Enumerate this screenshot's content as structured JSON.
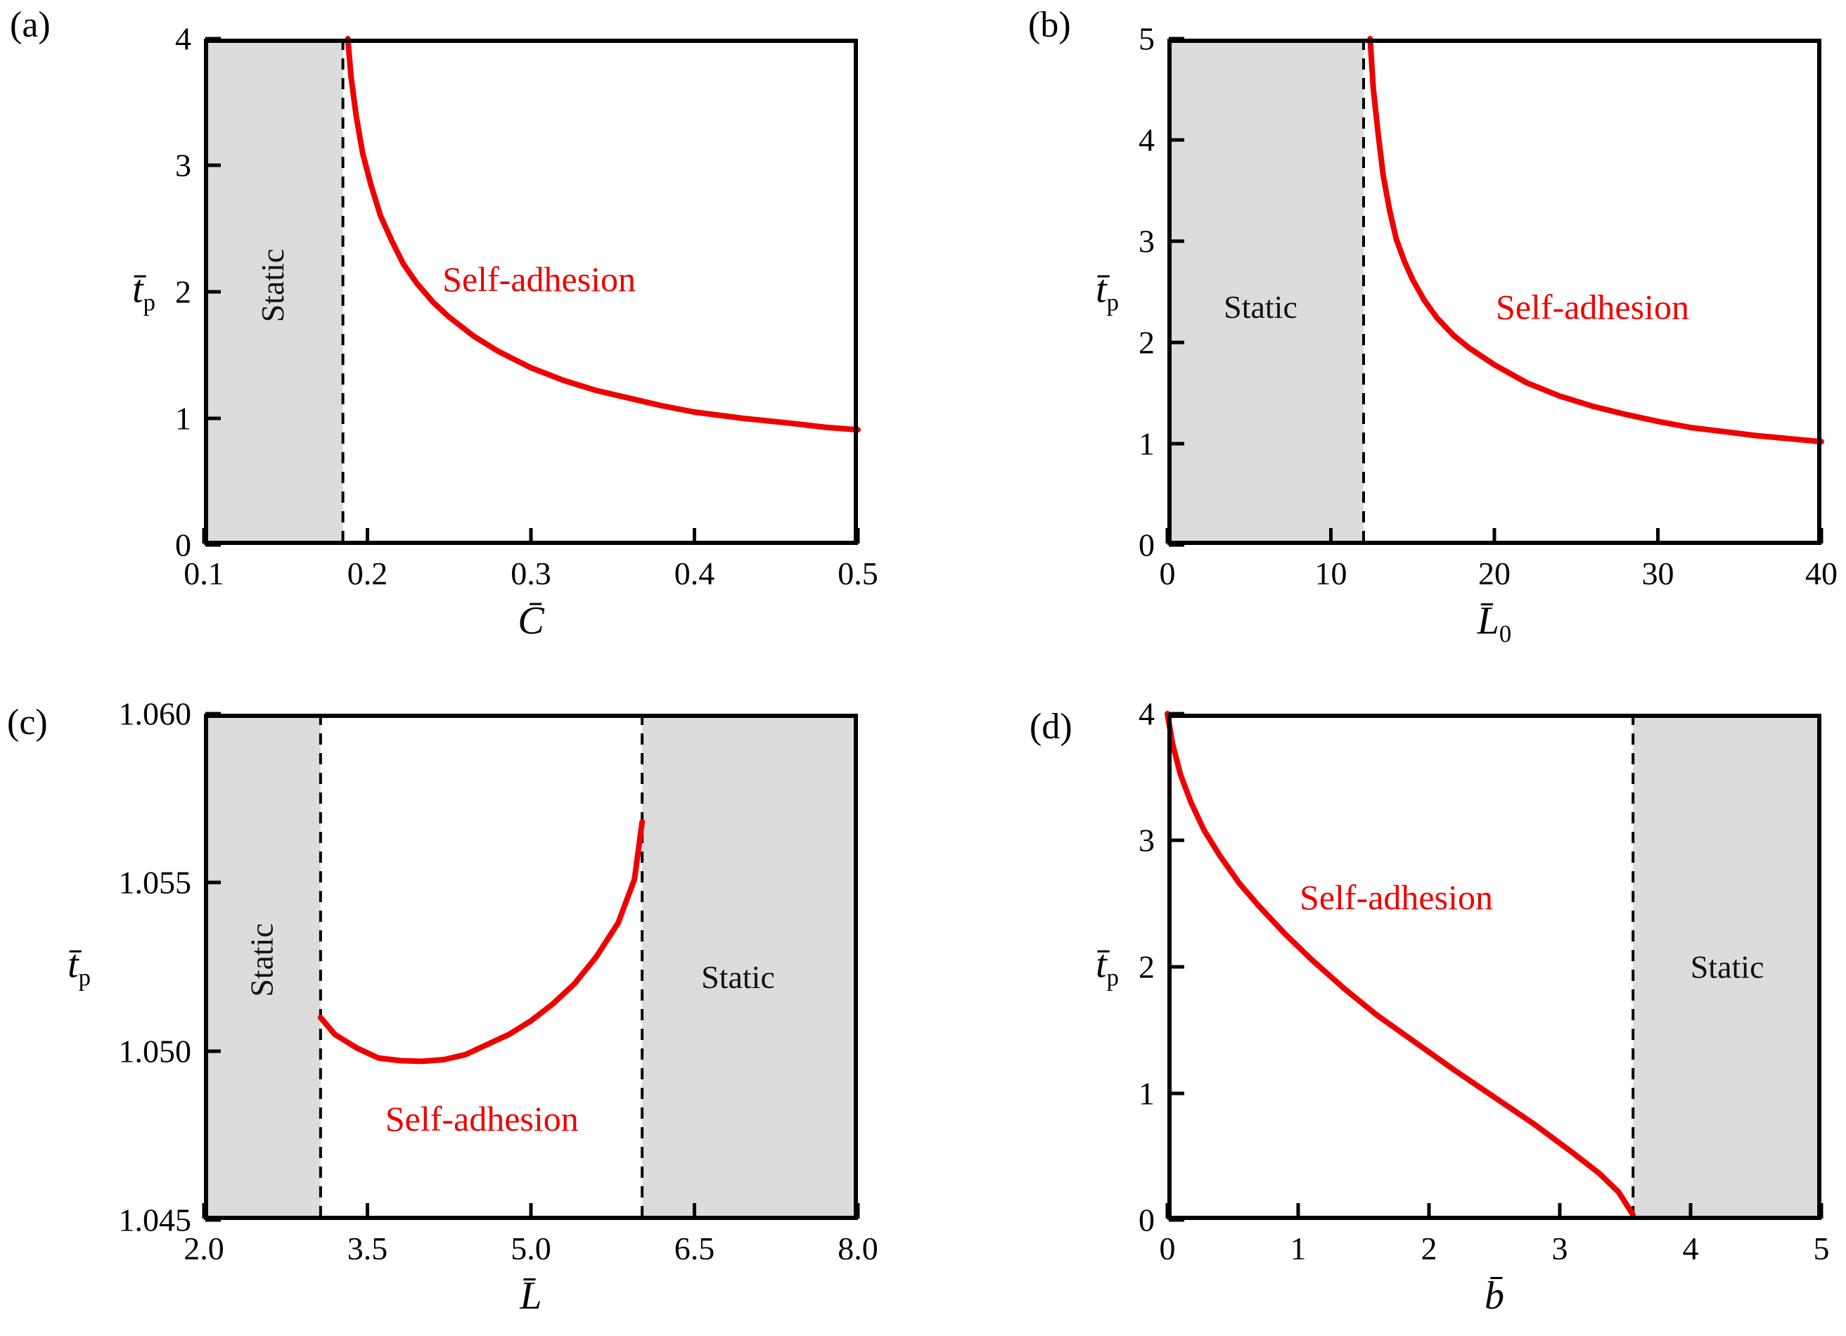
{
  "style": {
    "curve_red": "#ee0000",
    "static_region_fill": "#dcdcdc",
    "dashed_line_color": "#000000",
    "frame_color": "#000000",
    "background": "#ffffff"
  },
  "chart_data": [
    {
      "panel": "a",
      "panel_label": "(a)",
      "type": "line",
      "xlabel": {
        "base": "C̄",
        "sub": ""
      },
      "ylabel": {
        "base": "t̄",
        "sub": "p"
      },
      "xlim": [
        0.1,
        0.5
      ],
      "ylim": [
        0,
        4
      ],
      "xticks": [
        0.1,
        0.2,
        0.3,
        0.4,
        0.5
      ],
      "xtick_labels": [
        "0.1",
        "0.2",
        "0.3",
        "0.4",
        "0.5"
      ],
      "yticks": [
        0,
        1,
        2,
        3,
        4
      ],
      "ytick_labels": [
        "0",
        "1",
        "2",
        "3",
        "4"
      ],
      "static_regions": [
        [
          0.1,
          0.185
        ]
      ],
      "dashed_lines": [
        0.185
      ],
      "series": [
        {
          "name": "phase-boundary",
          "color": "#ee0000",
          "x": [
            0.188,
            0.19,
            0.193,
            0.197,
            0.202,
            0.208,
            0.215,
            0.222,
            0.23,
            0.24,
            0.25,
            0.265,
            0.28,
            0.3,
            0.32,
            0.34,
            0.36,
            0.38,
            0.4,
            0.43,
            0.46,
            0.48,
            0.5
          ],
          "y": [
            4.0,
            3.7,
            3.4,
            3.1,
            2.85,
            2.6,
            2.4,
            2.22,
            2.07,
            1.92,
            1.8,
            1.65,
            1.53,
            1.4,
            1.3,
            1.22,
            1.16,
            1.1,
            1.05,
            1.0,
            0.96,
            0.93,
            0.91
          ]
        }
      ],
      "annotations": [
        {
          "text": "Static",
          "x": 0.142,
          "y": 2.05,
          "rotate": -90,
          "size": 46,
          "color": "#111111"
        },
        {
          "text": "Self-adhesion",
          "x": 0.305,
          "y": 2.1,
          "rotate": 0,
          "size": 50,
          "color": "#ee0000"
        }
      ]
    },
    {
      "panel": "b",
      "panel_label": "(b)",
      "type": "line",
      "xlabel": {
        "base": "L̄",
        "sub": "0"
      },
      "ylabel": {
        "base": "t̄",
        "sub": "p"
      },
      "xlim": [
        0,
        40
      ],
      "ylim": [
        0,
        5
      ],
      "xticks": [
        0,
        10,
        20,
        30,
        40
      ],
      "xtick_labels": [
        "0",
        "10",
        "20",
        "30",
        "40"
      ],
      "yticks": [
        0,
        1,
        2,
        3,
        4,
        5
      ],
      "ytick_labels": [
        "0",
        "1",
        "2",
        "3",
        "4",
        "5"
      ],
      "static_regions": [
        [
          0,
          12
        ]
      ],
      "dashed_lines": [
        12
      ],
      "series": [
        {
          "name": "phase-boundary",
          "color": "#ee0000",
          "x": [
            12.4,
            12.6,
            12.9,
            13.2,
            13.6,
            14.0,
            14.5,
            15.0,
            15.7,
            16.5,
            17.5,
            18.5,
            20,
            22,
            24,
            26,
            28,
            30,
            32,
            34,
            36,
            38,
            40
          ],
          "y": [
            5.0,
            4.5,
            4.05,
            3.65,
            3.3,
            3.02,
            2.8,
            2.62,
            2.42,
            2.24,
            2.07,
            1.94,
            1.78,
            1.6,
            1.47,
            1.37,
            1.29,
            1.22,
            1.16,
            1.12,
            1.08,
            1.05,
            1.02
          ]
        }
      ],
      "annotations": [
        {
          "text": "Static",
          "x": 5.7,
          "y": 2.35,
          "rotate": 0,
          "size": 46,
          "color": "#111111"
        },
        {
          "text": "Self-adhesion",
          "x": 26,
          "y": 2.35,
          "rotate": 0,
          "size": 50,
          "color": "#ee0000"
        }
      ]
    },
    {
      "panel": "c",
      "panel_label": "(c)",
      "type": "line",
      "xlabel": {
        "base": "L̄",
        "sub": ""
      },
      "ylabel": {
        "base": "t̄",
        "sub": "p"
      },
      "xlim": [
        2.0,
        8.0
      ],
      "ylim": [
        1.045,
        1.06
      ],
      "xticks": [
        2.0,
        3.5,
        5.0,
        6.5,
        8.0
      ],
      "xtick_labels": [
        "2.0",
        "3.5",
        "5.0",
        "6.5",
        "8.0"
      ],
      "yticks": [
        1.045,
        1.05,
        1.055,
        1.06
      ],
      "ytick_labels": [
        "1.045",
        "1.050",
        "1.055",
        "1.060"
      ],
      "static_regions": [
        [
          2.0,
          3.07
        ],
        [
          6.02,
          8.0
        ]
      ],
      "dashed_lines": [
        3.07,
        6.02
      ],
      "series": [
        {
          "name": "phase-boundary",
          "color": "#ee0000",
          "x": [
            3.07,
            3.2,
            3.4,
            3.6,
            3.8,
            4.0,
            4.2,
            4.4,
            4.6,
            4.8,
            5.0,
            5.2,
            5.4,
            5.6,
            5.8,
            5.95,
            6.02
          ],
          "y": [
            1.051,
            1.0505,
            1.0501,
            1.0498,
            1.04972,
            1.0497,
            1.04975,
            1.0499,
            1.0502,
            1.0505,
            1.0509,
            1.0514,
            1.052,
            1.0528,
            1.0538,
            1.0551,
            1.0568
          ]
        }
      ],
      "annotations": [
        {
          "text": "Static",
          "x": 2.53,
          "y": 1.0527,
          "rotate": -90,
          "size": 46,
          "color": "#111111"
        },
        {
          "text": "Self-adhesion",
          "x": 4.55,
          "y": 1.048,
          "rotate": 0,
          "size": 50,
          "color": "#ee0000"
        },
        {
          "text": "Static",
          "x": 6.9,
          "y": 1.0522,
          "rotate": 0,
          "size": 46,
          "color": "#111111"
        }
      ]
    },
    {
      "panel": "d",
      "panel_label": "(d)",
      "type": "line",
      "xlabel": {
        "base": "b̄",
        "sub": ""
      },
      "ylabel": {
        "base": "t̄",
        "sub": "p"
      },
      "xlim": [
        0,
        5
      ],
      "ylim": [
        0,
        4
      ],
      "xticks": [
        0,
        1,
        2,
        3,
        4,
        5
      ],
      "xtick_labels": [
        "0",
        "1",
        "2",
        "3",
        "4",
        "5"
      ],
      "yticks": [
        0,
        1,
        2,
        3,
        4
      ],
      "ytick_labels": [
        "0",
        "1",
        "2",
        "3",
        "4"
      ],
      "static_regions": [
        [
          3.56,
          5
        ]
      ],
      "dashed_lines": [
        3.56
      ],
      "series": [
        {
          "name": "phase-boundary",
          "color": "#ee0000",
          "x": [
            0.0,
            0.04,
            0.1,
            0.18,
            0.28,
            0.4,
            0.55,
            0.7,
            0.9,
            1.1,
            1.35,
            1.6,
            1.9,
            2.2,
            2.5,
            2.8,
            3.1,
            3.3,
            3.45,
            3.56
          ],
          "y": [
            4.0,
            3.76,
            3.52,
            3.3,
            3.08,
            2.88,
            2.66,
            2.48,
            2.26,
            2.06,
            1.83,
            1.62,
            1.4,
            1.18,
            0.97,
            0.76,
            0.53,
            0.37,
            0.22,
            0.04
          ]
        }
      ],
      "annotations": [
        {
          "text": "Self-adhesion",
          "x": 1.75,
          "y": 2.55,
          "rotate": 0,
          "size": 50,
          "color": "#ee0000"
        },
        {
          "text": "Static",
          "x": 4.28,
          "y": 2.0,
          "rotate": 0,
          "size": 46,
          "color": "#111111"
        }
      ]
    }
  ]
}
